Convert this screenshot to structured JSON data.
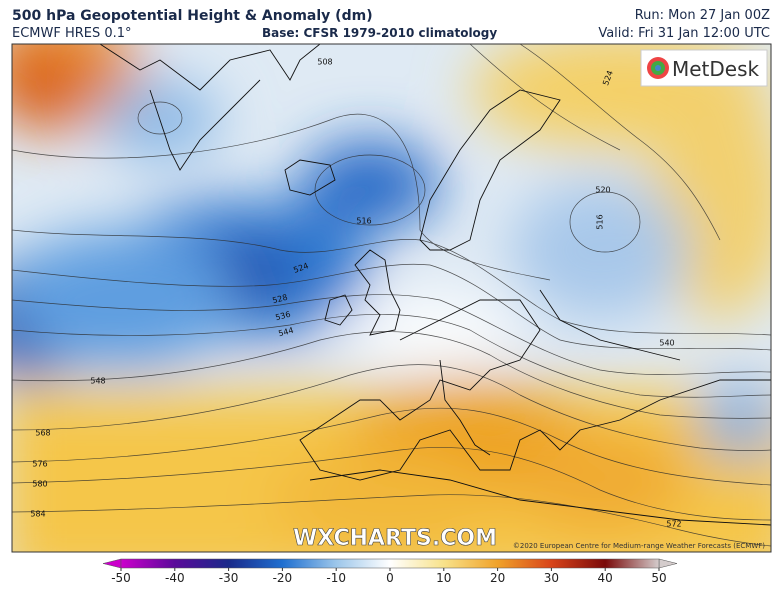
{
  "header": {
    "title": "500 hPa Geopotential Height & Anomaly (dm)",
    "model": "ECMWF HRES 0.1°",
    "base": "Base: CFSR 1979-2010 climatology",
    "run": "Run: Mon 27 Jan 00Z",
    "valid": "Valid: Fri 31 Jan 12:00 UTC"
  },
  "logo": "MetDesk",
  "watermark": "WXCHARTS.COM",
  "copyright": "©2020 European Centre for Medium-range Weather Forecasts (ECMWF)",
  "contour_labels": [
    508,
    524,
    516,
    520,
    516,
    524,
    528,
    536,
    544,
    540,
    548,
    568,
    576,
    580,
    584,
    572
  ],
  "colorbar": {
    "ticks": [
      -50,
      -40,
      -30,
      -20,
      -10,
      0,
      10,
      20,
      30,
      40,
      50
    ],
    "colors": [
      "#cc00cc",
      "#5a0a9a",
      "#1a2a8a",
      "#1f6fd0",
      "#9cc6ea",
      "#ffffff",
      "#f8e28a",
      "#f0a22a",
      "#d8441a",
      "#7a0a0a",
      "#d4cccc"
    ]
  }
}
